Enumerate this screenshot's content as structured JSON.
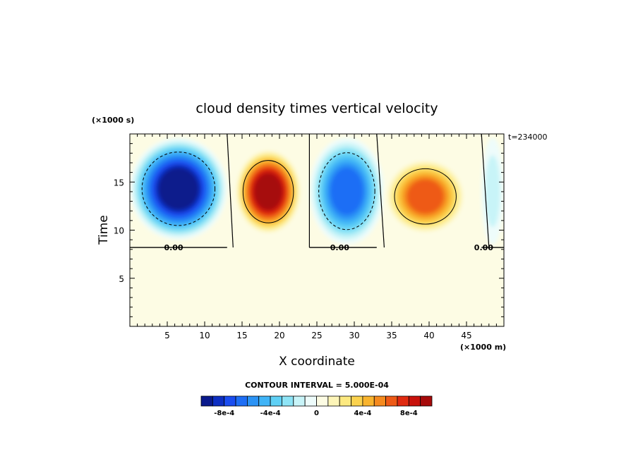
{
  "chart_data": {
    "type": "heatmap",
    "title": "cloud density times vertical velocity",
    "time_label": "t=234000",
    "xlabel": "X coordinate",
    "ylabel": "Time",
    "x_unit": "(×1000 m)",
    "y_unit": "(×1000 s)",
    "xlim": [
      0,
      50
    ],
    "ylim": [
      0,
      20
    ],
    "x_ticks": [
      5,
      10,
      15,
      20,
      25,
      30,
      35,
      40,
      45
    ],
    "y_ticks": [
      5,
      10,
      15
    ],
    "grid": false,
    "contour_interval_text": "CONTOUR INTERVAL = 5.000E-04",
    "zero_contour_labels": [
      "0.00",
      "0.00",
      "0.00"
    ],
    "colorbar": {
      "labels": [
        "-8e-4",
        "-4e-4",
        "0",
        "4e-4",
        "8e-4"
      ],
      "label_values": [
        -0.0008,
        -0.0004,
        0,
        0.0004,
        0.0008
      ],
      "range": [
        -0.001,
        0.001
      ],
      "colors": [
        "#0a1a8c",
        "#0d2fc2",
        "#1a4df0",
        "#1e6ef5",
        "#2b93f5",
        "#40b4f7",
        "#5fd0f5",
        "#8ee4f6",
        "#c8f4f8",
        "#eefcfb",
        "#fdfce4",
        "#fdf5b8",
        "#fde980",
        "#fbd24e",
        "#f9b42e",
        "#f58a1e",
        "#ee5a16",
        "#e02a10",
        "#c8120c",
        "#a60a0a"
      ]
    },
    "features": [
      {
        "name": "negative cell 1",
        "x": [
          0,
          13
        ],
        "y": [
          9,
          19.6
        ],
        "peak": -0.001
      },
      {
        "name": "positive cell 1",
        "x": [
          14,
          23
        ],
        "y": [
          9.5,
          18.5
        ],
        "peak": 0.001
      },
      {
        "name": "negative cell 2",
        "x": [
          24,
          34
        ],
        "y": [
          8.5,
          19.6
        ],
        "peak": -0.0007
      },
      {
        "name": "positive cell 2",
        "x": [
          34,
          45
        ],
        "y": [
          9.5,
          17.5
        ],
        "peak": 0.0007
      },
      {
        "name": "negative cell 3",
        "x": [
          47,
          50
        ],
        "y": [
          8.5,
          19.6
        ],
        "peak": -0.0002
      }
    ]
  }
}
